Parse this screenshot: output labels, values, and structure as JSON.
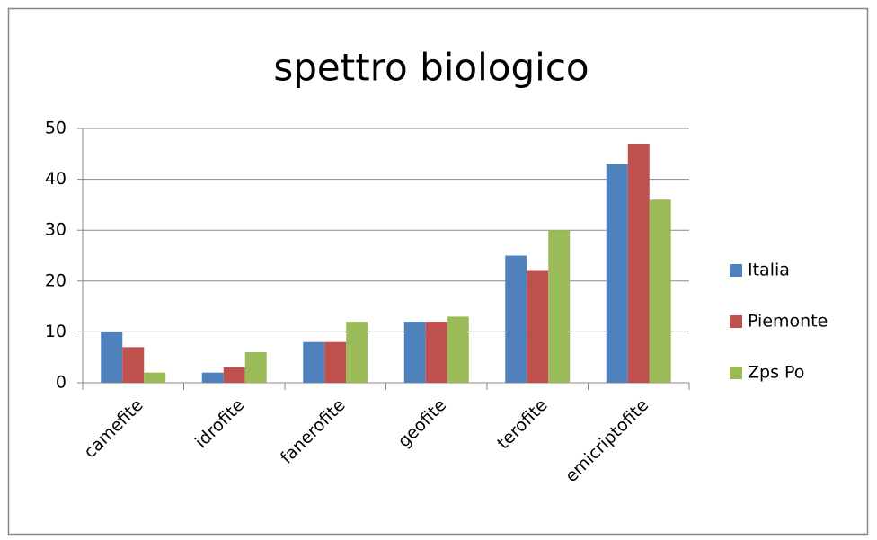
{
  "chart_data": {
    "type": "bar",
    "title": "spettro biologico",
    "categories": [
      "camefite",
      "idrofite",
      "fanerofite",
      "geofite",
      "terofite",
      "emicriptofite"
    ],
    "series": [
      {
        "name": "Italia",
        "color": "#4f81bd",
        "values": [
          10,
          2,
          8,
          12,
          25,
          43
        ]
      },
      {
        "name": "Piemonte",
        "color": "#c0504d",
        "values": [
          7,
          3,
          8,
          12,
          22,
          47
        ]
      },
      {
        "name": "Zps Po",
        "color": "#9bbb59",
        "values": [
          2,
          6,
          12,
          13,
          30,
          36
        ]
      }
    ],
    "ylim": [
      0,
      50
    ],
    "yticks": [
      0,
      10,
      20,
      30,
      40,
      50
    ],
    "grid": true,
    "legend": "right"
  }
}
